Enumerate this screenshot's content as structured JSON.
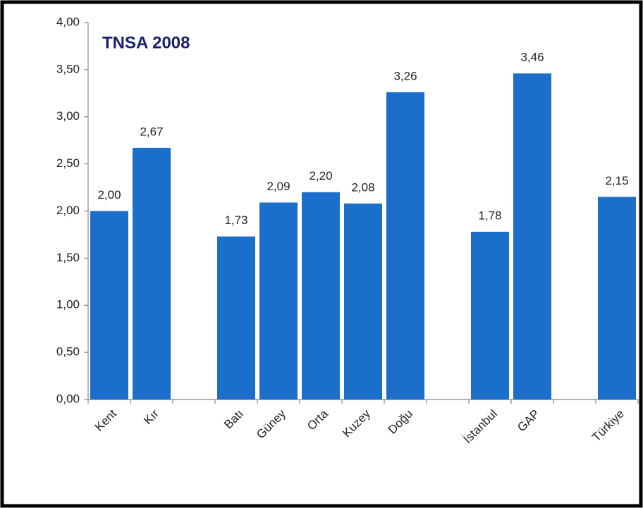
{
  "chart_data": {
    "type": "bar",
    "title": "TNSA 2008",
    "categories": [
      "Kent",
      "Kır",
      null,
      "Batı",
      "Güney",
      "Orta",
      "Kuzey",
      "Doğu",
      null,
      "İstanbul",
      "GAP",
      null,
      "Türkiye"
    ],
    "values": [
      2.0,
      2.67,
      null,
      1.73,
      2.09,
      2.2,
      2.08,
      3.26,
      null,
      1.78,
      3.46,
      null,
      2.15
    ],
    "value_labels": [
      "2,00",
      "2,67",
      null,
      "1,73",
      "2,09",
      "2,20",
      "2,08",
      "3,26",
      null,
      "1,78",
      "3,46",
      null,
      "2,15"
    ],
    "color": "#1b6fca",
    "ylim": [
      0,
      4
    ],
    "yticks": [
      {
        "value": 0,
        "label": "0,00"
      },
      {
        "value": 0.5,
        "label": "0,50"
      },
      {
        "value": 1,
        "label": "1,00"
      },
      {
        "value": 1.5,
        "label": "1,50"
      },
      {
        "value": 2,
        "label": "2,00"
      },
      {
        "value": 2.5,
        "label": "2,50"
      },
      {
        "value": 3,
        "label": "3,00"
      },
      {
        "value": 3.5,
        "label": "3,50"
      },
      {
        "value": 4,
        "label": "4,00"
      }
    ],
    "grid": false
  }
}
